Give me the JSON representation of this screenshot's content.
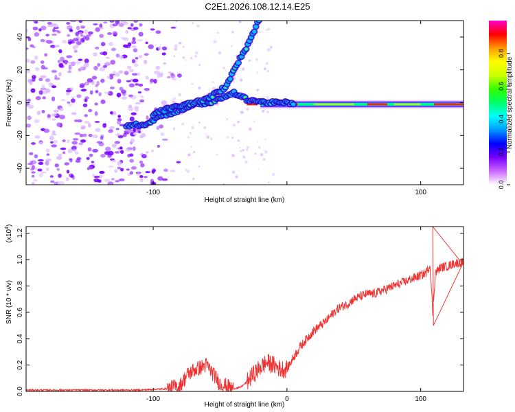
{
  "title": "C2E1.2026.108.12.14.E25",
  "chart_data": [
    {
      "type": "heatmap",
      "xlabel": "Height of straight line (km)",
      "ylabel": "Frequency (Hz)",
      "xlim": [
        -195,
        132
      ],
      "ylim": [
        -50,
        50
      ],
      "xticks": [
        -100,
        0,
        100
      ],
      "xtick_labels": [
        "-100",
        "",
        "100"
      ],
      "yticks": [
        40,
        20,
        0,
        -20,
        -40
      ],
      "colorbar": {
        "label": "Normalized spectral amplitude",
        "ticks": [
          0.0,
          0.2,
          0.4,
          0.6,
          0.8
        ],
        "range": [
          0,
          1
        ],
        "colors": [
          "#ffffff",
          "#cc66ff",
          "#7700ff",
          "#0000ff",
          "#0099ff",
          "#00ffff",
          "#00ff66",
          "#33ff00",
          "#ccff00",
          "#ffff00",
          "#ff9900",
          "#ff0000",
          "#ff00cc"
        ]
      },
      "features": [
        {
          "name": "carrier line",
          "from_x": 5,
          "to_x": 132,
          "freq": -1,
          "amplitude": 0.8
        },
        {
          "name": "upper branch",
          "points": [
            [
              -100,
              -7
            ],
            [
              -90,
              -4
            ],
            [
              -75,
              -1
            ],
            [
              -60,
              2
            ],
            [
              -45,
              10
            ],
            [
              -40,
              20
            ],
            [
              -30,
              34
            ],
            [
              -20,
              52
            ]
          ]
        },
        {
          "name": "lower branch",
          "points": [
            [
              -120,
              -14
            ],
            [
              -105,
              -13
            ],
            [
              -95,
              -8
            ],
            [
              -80,
              -5
            ],
            [
              -70,
              -1
            ],
            [
              -58,
              0
            ],
            [
              -48,
              3
            ],
            [
              -40,
              6
            ],
            [
              -30,
              2
            ],
            [
              -15,
              0
            ],
            [
              0,
              0
            ],
            [
              5,
              -1
            ]
          ]
        },
        {
          "name": "noise region",
          "from_x": -195,
          "to_x": -85
        }
      ]
    },
    {
      "type": "line",
      "xlabel": "Height of straight line (km)",
      "ylabel": "SNR (10 * v/v)",
      "y_multiplier": "(x10",
      "y_multiplier_exp": "4",
      "y_multiplier_close": ")",
      "xlim": [
        -195,
        132
      ],
      "ylim": [
        0,
        1.25
      ],
      "xticks": [
        -100,
        0,
        100
      ],
      "xtick_labels": [
        "-100",
        "0",
        "100"
      ],
      "yticks": [
        0.0,
        0.2,
        0.4,
        0.6,
        0.8,
        1.0,
        1.2
      ],
      "ytick_labels": [
        "0.0",
        "0.2",
        "0.4",
        "0.6",
        "0.8",
        "1.0",
        "1.2"
      ],
      "series": [
        {
          "name": "SNR",
          "color": "#ee3333",
          "x": [
            -195,
            -170,
            -140,
            -110,
            -90,
            -80,
            -75,
            -70,
            -65,
            -60,
            -55,
            -50,
            -45,
            -40,
            -35,
            -30,
            -25,
            -20,
            -15,
            -10,
            -5,
            0,
            5,
            10,
            15,
            20,
            25,
            30,
            35,
            40,
            45,
            50,
            55,
            60,
            65,
            70,
            75,
            80,
            85,
            90,
            95,
            100,
            104,
            107,
            109,
            111,
            115,
            120,
            125,
            132
          ],
          "y": [
            0.01,
            0.01,
            0.01,
            0.01,
            0.02,
            0.04,
            0.12,
            0.16,
            0.18,
            0.2,
            0.13,
            0.06,
            0.04,
            0.02,
            0.03,
            0.07,
            0.13,
            0.18,
            0.22,
            0.2,
            0.17,
            0.17,
            0.26,
            0.34,
            0.4,
            0.46,
            0.5,
            0.54,
            0.6,
            0.64,
            0.66,
            0.7,
            0.72,
            0.74,
            0.74,
            0.76,
            0.78,
            0.8,
            0.82,
            0.84,
            0.86,
            0.88,
            0.9,
            0.96,
            0.6,
            0.9,
            0.94,
            0.95,
            0.97,
            0.98
          ]
        }
      ],
      "annotations": [
        {
          "x": 109,
          "value_range": [
            0.5,
            1.25
          ],
          "label": "spike"
        }
      ]
    }
  ]
}
